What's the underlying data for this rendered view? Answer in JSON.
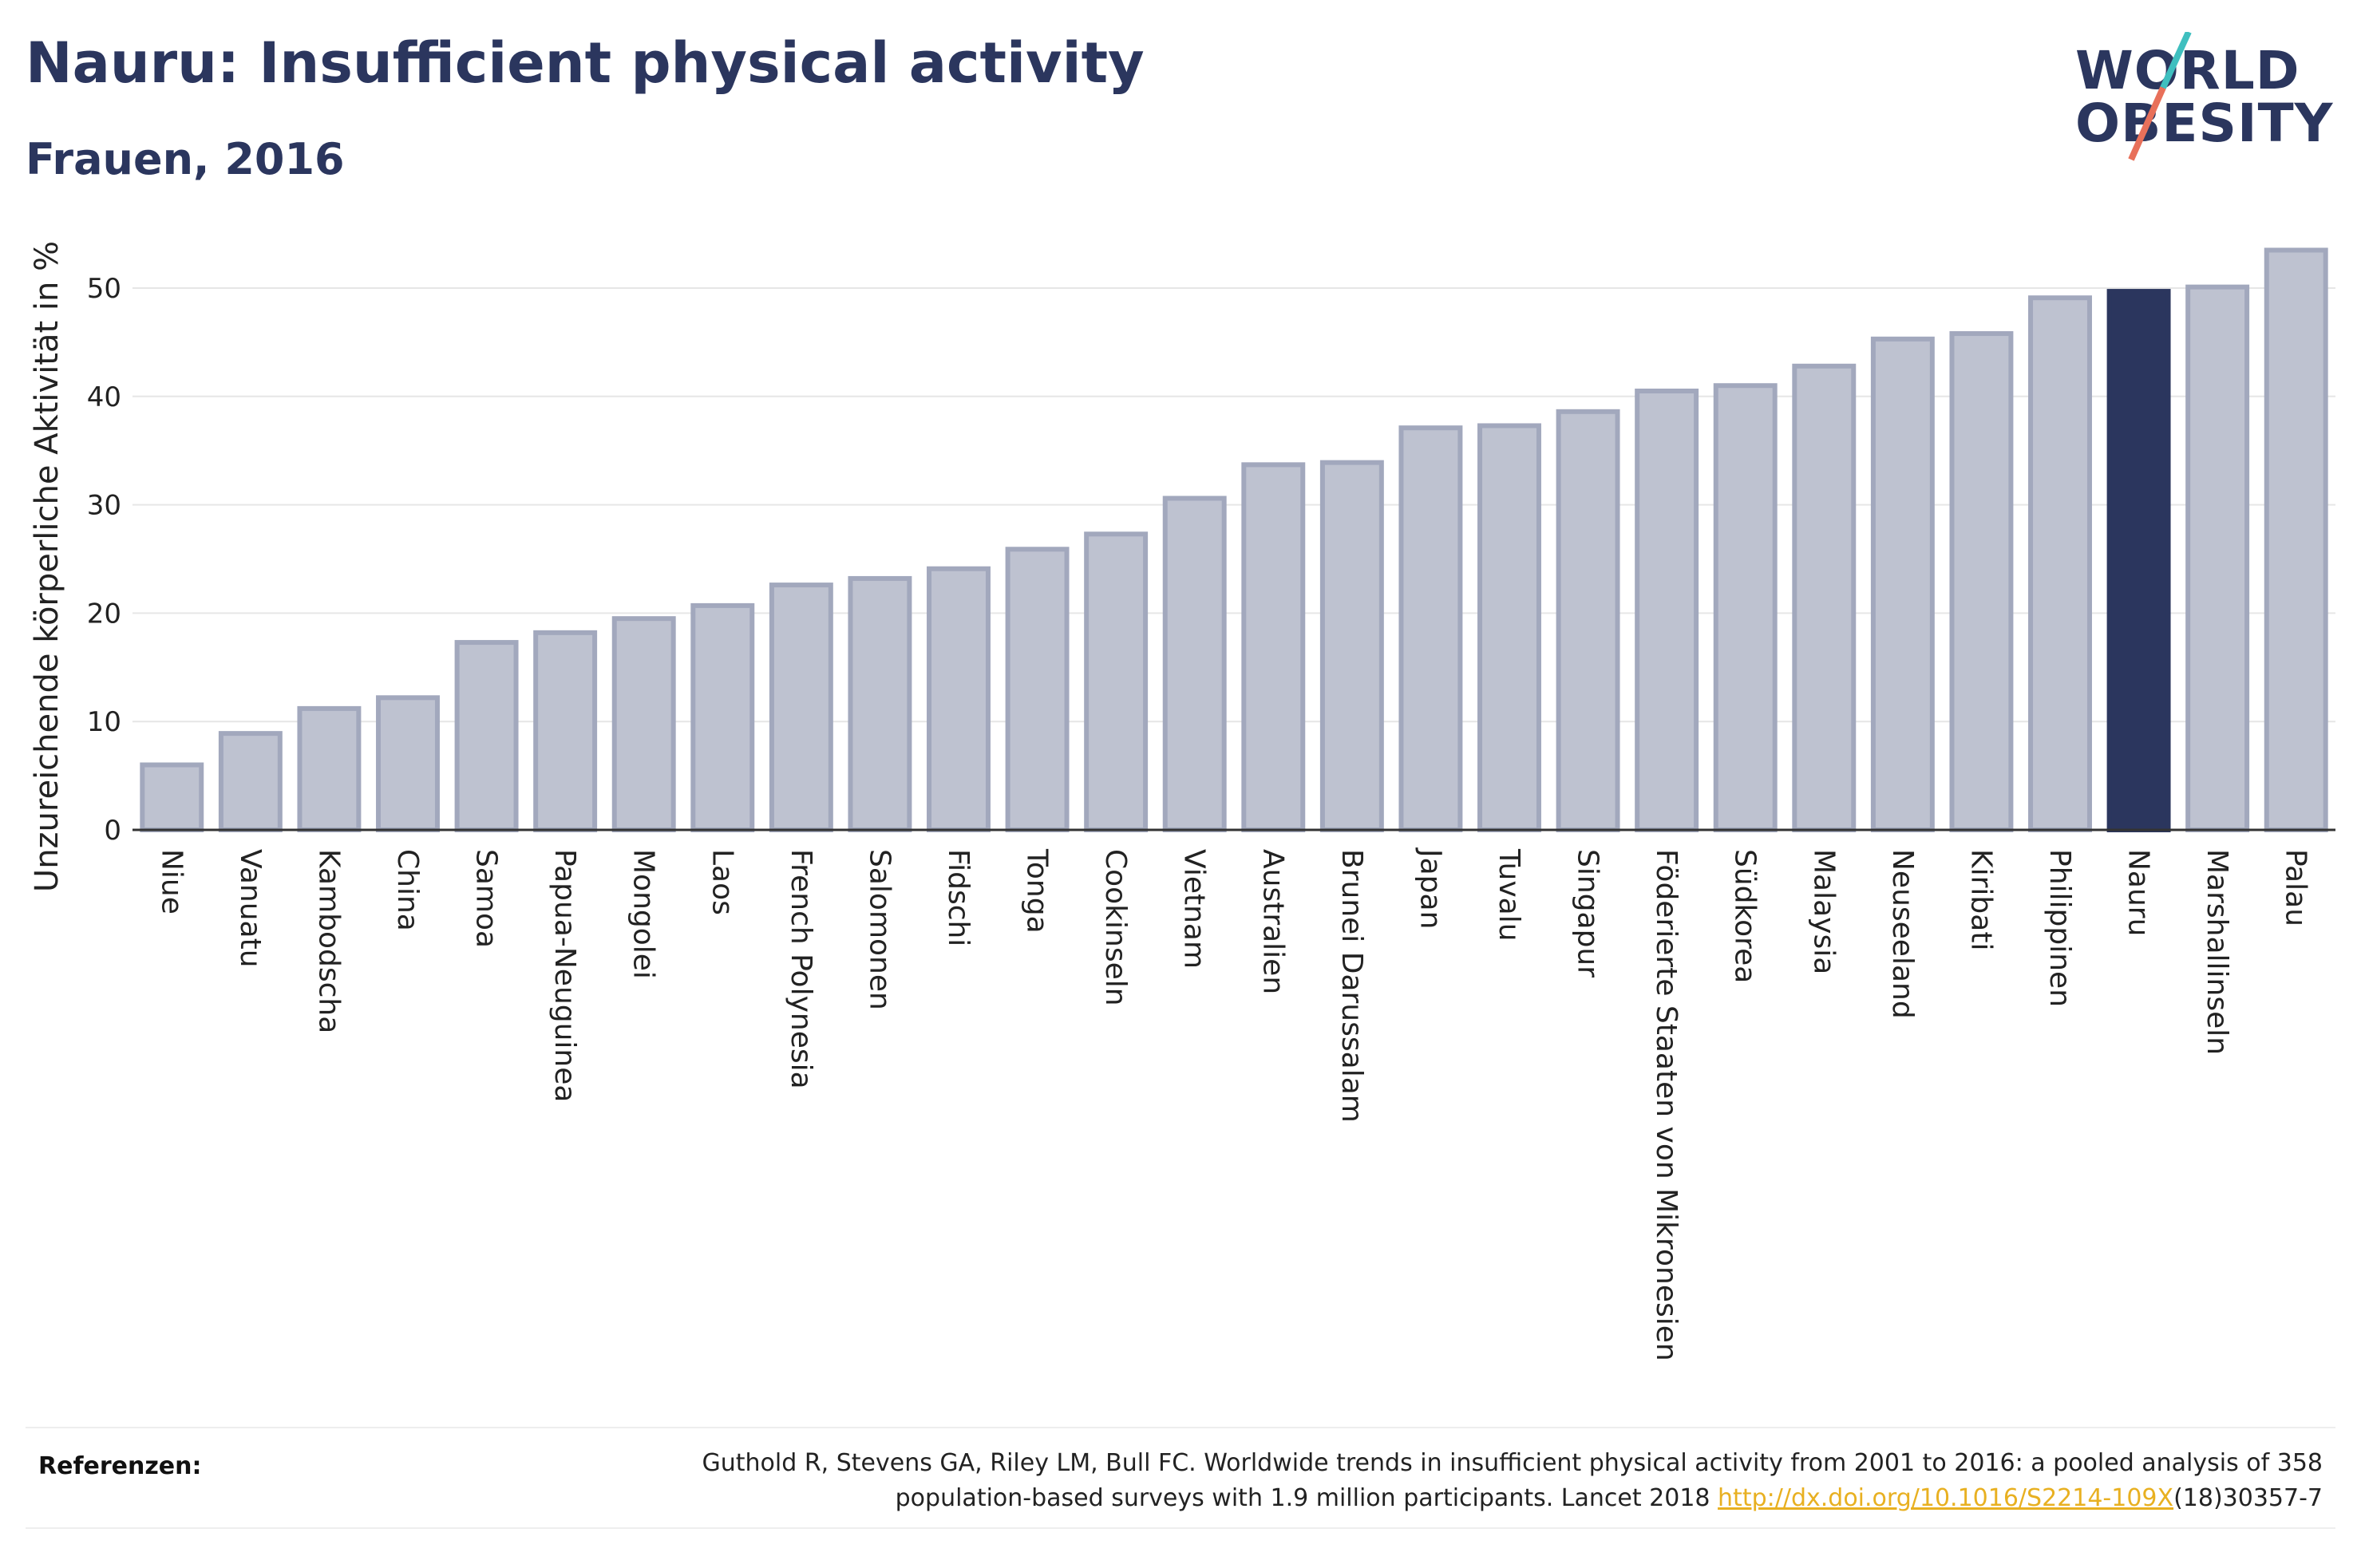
{
  "header": {
    "title": "Nauru: Insufficient physical activity",
    "subtitle": "Frauen, 2016"
  },
  "logo": {
    "line1": "WORLD",
    "line2": "OBESITY",
    "colors": {
      "text": "#2b365e",
      "slash_top": "#3fbfbf",
      "slash_bottom": "#e8705a"
    }
  },
  "colors": {
    "bar_fill": "#bec2d0",
    "bar_stroke": "#a2a8bd",
    "highlight": "#2b365e",
    "grid": "#e6e6e6",
    "axis": "#333333"
  },
  "chart_data": {
    "type": "bar",
    "ylabel": "Unzureichende körperliche Aktivität in %",
    "xlabel": "",
    "ylim": [
      0,
      55
    ],
    "yticks": [
      0,
      10,
      20,
      30,
      40,
      50
    ],
    "grid": true,
    "highlight": "Nauru",
    "categories": [
      "Niue",
      "Vanuatu",
      "Kambodscha",
      "China",
      "Samoa",
      "Papua-Neuguinea",
      "Mongolei",
      "Laos",
      "French Polynesia",
      "Salomonen",
      "Fidschi",
      "Tonga",
      "Cookinseln",
      "Vietnam",
      "Australien",
      "Brunei Darussalam",
      "Japan",
      "Tuvalu",
      "Singapur",
      "Föderierte Staaten von Mikronesien",
      "Südkorea",
      "Malaysia",
      "Neuseeland",
      "Kiribati",
      "Philippinen",
      "Nauru",
      "Marshallinseln",
      "Palau"
    ],
    "values": [
      6.0,
      8.9,
      11.2,
      12.2,
      17.3,
      18.2,
      19.5,
      20.7,
      22.6,
      23.2,
      24.1,
      25.9,
      27.3,
      30.6,
      33.7,
      33.9,
      37.1,
      37.3,
      38.6,
      40.5,
      41.0,
      42.8,
      45.3,
      45.8,
      49.1,
      49.7,
      50.1,
      53.5
    ]
  },
  "references": {
    "label": "Referenzen:",
    "text_line1": "Guthold R, Stevens GA, Riley LM, Bull FC. Worldwide trends in insufficient physical activity from 2001 to 2016: a pooled analysis of 358",
    "text_line2_before": "population-based surveys with 1.9 million participants. Lancet 2018 ",
    "link": "http://dx.doi.org/10.1016/S2214-109X",
    "text_line2_after": "(18)30357-7"
  }
}
